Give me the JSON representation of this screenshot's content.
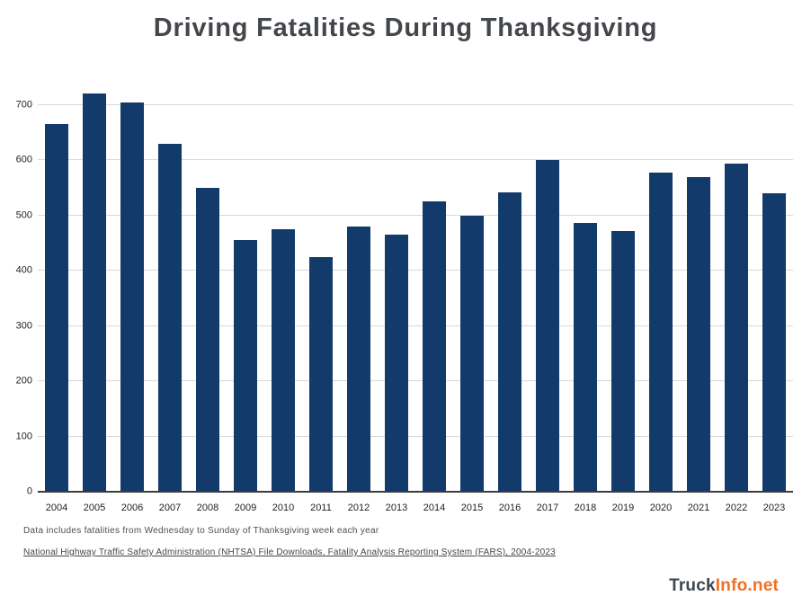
{
  "title": "Driving Fatalities During Thanksgiving",
  "footnote": "Data includes fatalities from Wednesday to Sunday of Thanksgiving week each year",
  "source_link_text": "National Highway Traffic Safety Administration (NHTSA) File Downloads, Fatality Analysis Reporting System (FARS), 2004-2023",
  "logo": {
    "part1": "Truck",
    "part2": "Info",
    "part3": ".net"
  },
  "colors": {
    "bar": "#123a6b",
    "title": "#43474c",
    "accent_orange": "#f26f21",
    "gridline": "#d9d9d9",
    "axis_line": "#3d3d3d"
  },
  "chart_data": {
    "type": "bar",
    "title": "Driving Fatalities During Thanksgiving",
    "categories": [
      "2004",
      "2005",
      "2006",
      "2007",
      "2008",
      "2009",
      "2010",
      "2011",
      "2012",
      "2013",
      "2014",
      "2015",
      "2016",
      "2017",
      "2018",
      "2019",
      "2020",
      "2021",
      "2022",
      "2023"
    ],
    "values": [
      665,
      720,
      705,
      630,
      550,
      455,
      475,
      425,
      480,
      465,
      525,
      500,
      542,
      600,
      487,
      472,
      578,
      570,
      593,
      540
    ],
    "xlabel": "",
    "ylabel": "",
    "ylim": [
      0,
      740
    ],
    "yticks": [
      0,
      100,
      200,
      300,
      400,
      500,
      600,
      700
    ],
    "grid": true,
    "legend": false,
    "bar_color": "#123a6b"
  }
}
